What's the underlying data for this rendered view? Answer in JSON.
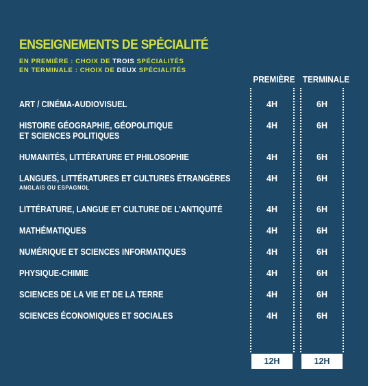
{
  "title": "ENSEIGNEMENTS DE SPÉCIALITÉ",
  "subtitle_1": {
    "prefix": "EN PREMIÈRE :  CHOIX DE ",
    "highlight": "TROIS",
    "suffix": " SPÉCIALITÉS"
  },
  "subtitle_2": {
    "prefix": "EN TERMINALE : CHOIX DE ",
    "highlight": "DEUX",
    "suffix": " SPÉCIALITÉS"
  },
  "columns": {
    "premiere": "PREMIÈRE",
    "terminale": "TERMINALE"
  },
  "rows": [
    {
      "label": "ART / CINÉMA-AUDIOVISUEL",
      "premiere": "4H",
      "terminale": "6H"
    },
    {
      "label": "HISTOIRE GÉOGRAPHIE, GÉOPOLITIQUE",
      "label2": "ET SCIENCES POLITIQUES",
      "premiere": "4H",
      "terminale": "6H"
    },
    {
      "label": "HUMANITÉS, LITTÉRATURE ET PHILOSOPHIE",
      "premiere": "4H",
      "terminale": "6H"
    },
    {
      "label": "LANGUES, LITTÉRATURES ET CULTURES ÉTRANGÈRES",
      "note": "ANGLAIS OU ESPAGNOL",
      "premiere": "4H",
      "terminale": "6H"
    },
    {
      "label": "LITTÉRATURE, LANGUE ET CULTURE DE L'ANTIQUITÉ",
      "premiere": "4H",
      "terminale": "6H"
    },
    {
      "label": "MATHÉMATIQUES",
      "premiere": "4H",
      "terminale": "6H"
    },
    {
      "label": "NUMÉRIQUE ET SCIENCES INFORMATIQUES",
      "premiere": "4H",
      "terminale": "6H"
    },
    {
      "label": "PHYSIQUE-CHIMIE",
      "premiere": "4H",
      "terminale": "6H"
    },
    {
      "label": "SCIENCES DE LA VIE ET DE LA TERRE",
      "premiere": "4H",
      "terminale": "6H"
    },
    {
      "label": "SCIENCES ÉCONOMIQUES ET SOCIALES",
      "premiere": "4H",
      "terminale": "6H"
    }
  ],
  "totals": {
    "premiere": "12H",
    "terminale": "12H"
  },
  "colors": {
    "background": "#1d4868",
    "accent": "#d6e23a",
    "text": "#ffffff"
  }
}
